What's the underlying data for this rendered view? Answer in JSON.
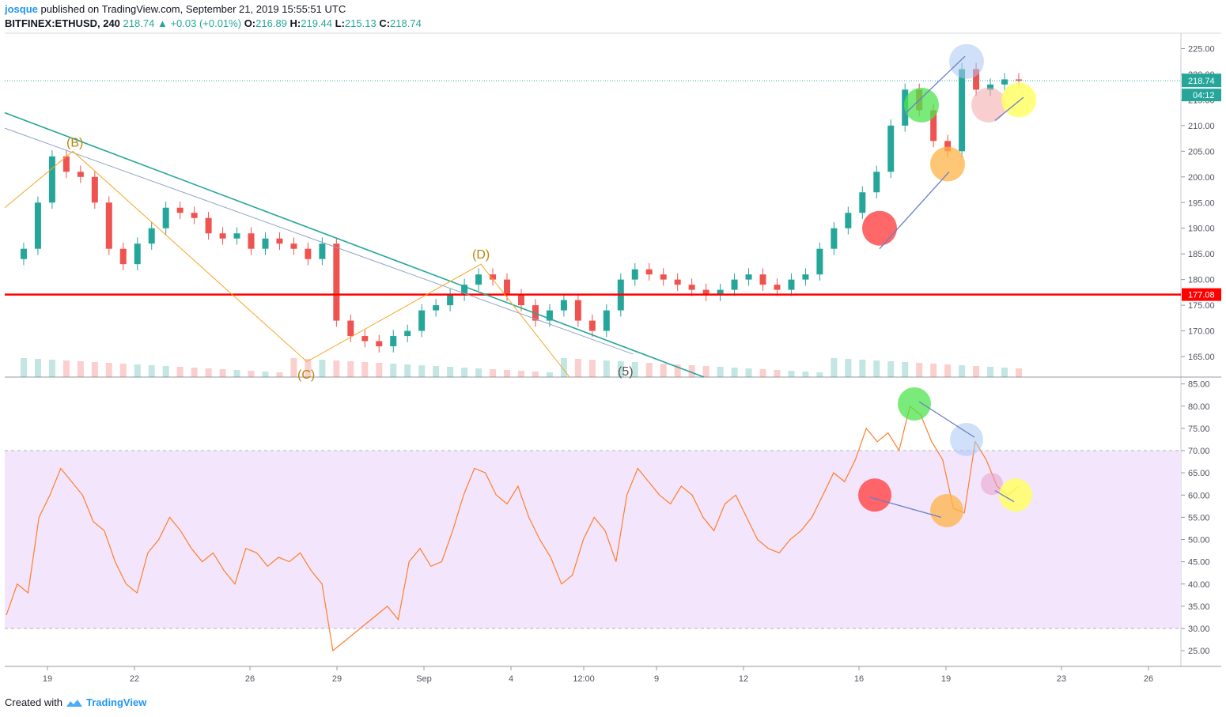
{
  "header": {
    "user": "josque",
    "published_text": "published on TradingView.com, September 21, 2019 15:55:51 UTC",
    "symbol": "BITFINEX:ETHUSD, 240",
    "last": "218.74",
    "change": "+0.03 (+0.01%)",
    "o_label": "O:",
    "o_value": "216.89",
    "h_label": "H:",
    "h_value": "219.44",
    "l_label": "L:",
    "l_value": "215.13",
    "c_label": "C:",
    "c_value": "218.74"
  },
  "footer": {
    "created_with": "Created with",
    "brand": "TradingView"
  },
  "colors": {
    "up": "#26a69a",
    "down": "#ef5350",
    "rsi_line": "#ff7f2a",
    "rsi_band": "#f3e5fc",
    "support": "#ff0000",
    "trend": "#26a69a",
    "wave": "#f5a623",
    "arrow": "#6a7ec8"
  },
  "chart_data": [
    {
      "type": "candlestick",
      "title": "BITFINEX:ETHUSD, 240",
      "ylim": [
        161,
        228
      ],
      "y_ticks": [
        "225.00",
        "220.00",
        "215.00",
        "210.00",
        "205.00",
        "200.00",
        "195.00",
        "190.00",
        "185.00",
        "180.00",
        "175.00",
        "170.00",
        "165.00"
      ],
      "x_ticks": [
        "19",
        "22",
        "26",
        "29",
        "Sep",
        "4",
        "12:00",
        "9",
        "12",
        "16",
        "19",
        "23",
        "26"
      ],
      "last_price_label": "218.74",
      "countdown_label": "04:12",
      "support_level": 177.08,
      "support_label": "177.08",
      "wave_labels": [
        "(B)",
        "(C)",
        "(D)",
        "(5)"
      ],
      "price_path": [
        184,
        186,
        195,
        204,
        201,
        200,
        195,
        186,
        183,
        187,
        190,
        194,
        193,
        192,
        189,
        188,
        189,
        186,
        188,
        187,
        186,
        184,
        187,
        172,
        169,
        168,
        167,
        169,
        170,
        174,
        175,
        177,
        179,
        181,
        180,
        177,
        175,
        172,
        174,
        176,
        172,
        170,
        174,
        180,
        182,
        181,
        180,
        179,
        178,
        177,
        178,
        180,
        181,
        179,
        178,
        180,
        181,
        186,
        190,
        193,
        197,
        201,
        210,
        217,
        213,
        207,
        205,
        221,
        217,
        218,
        219,
        218.74
      ]
    },
    {
      "type": "line",
      "title": "",
      "ylim": [
        22,
        86
      ],
      "y_ticks": [
        "85.00",
        "80.00",
        "75.00",
        "70.00",
        "65.00",
        "60.00",
        "55.00",
        "50.00",
        "45.00",
        "40.00",
        "35.00",
        "30.00",
        "25.00"
      ],
      "band": [
        30,
        70
      ],
      "values": [
        33,
        40,
        38,
        55,
        60,
        66,
        63,
        60,
        54,
        52,
        45,
        40,
        38,
        47,
        50,
        55,
        52,
        48,
        45,
        47,
        43,
        40,
        48,
        47,
        44,
        46,
        45,
        47,
        43,
        40,
        25,
        27,
        29,
        31,
        33,
        35,
        32,
        45,
        48,
        44,
        45,
        52,
        60,
        66,
        65,
        60,
        58,
        62,
        55,
        50,
        46,
        40,
        42,
        50,
        55,
        52,
        45,
        60,
        66,
        63,
        60,
        58,
        62,
        60,
        55,
        52,
        58,
        60,
        55,
        50,
        48,
        47,
        50,
        52,
        55,
        60,
        65,
        63,
        68,
        75,
        72,
        74,
        70,
        80,
        78,
        72,
        68,
        57,
        56,
        72,
        68,
        62,
        60,
        62
      ]
    }
  ]
}
